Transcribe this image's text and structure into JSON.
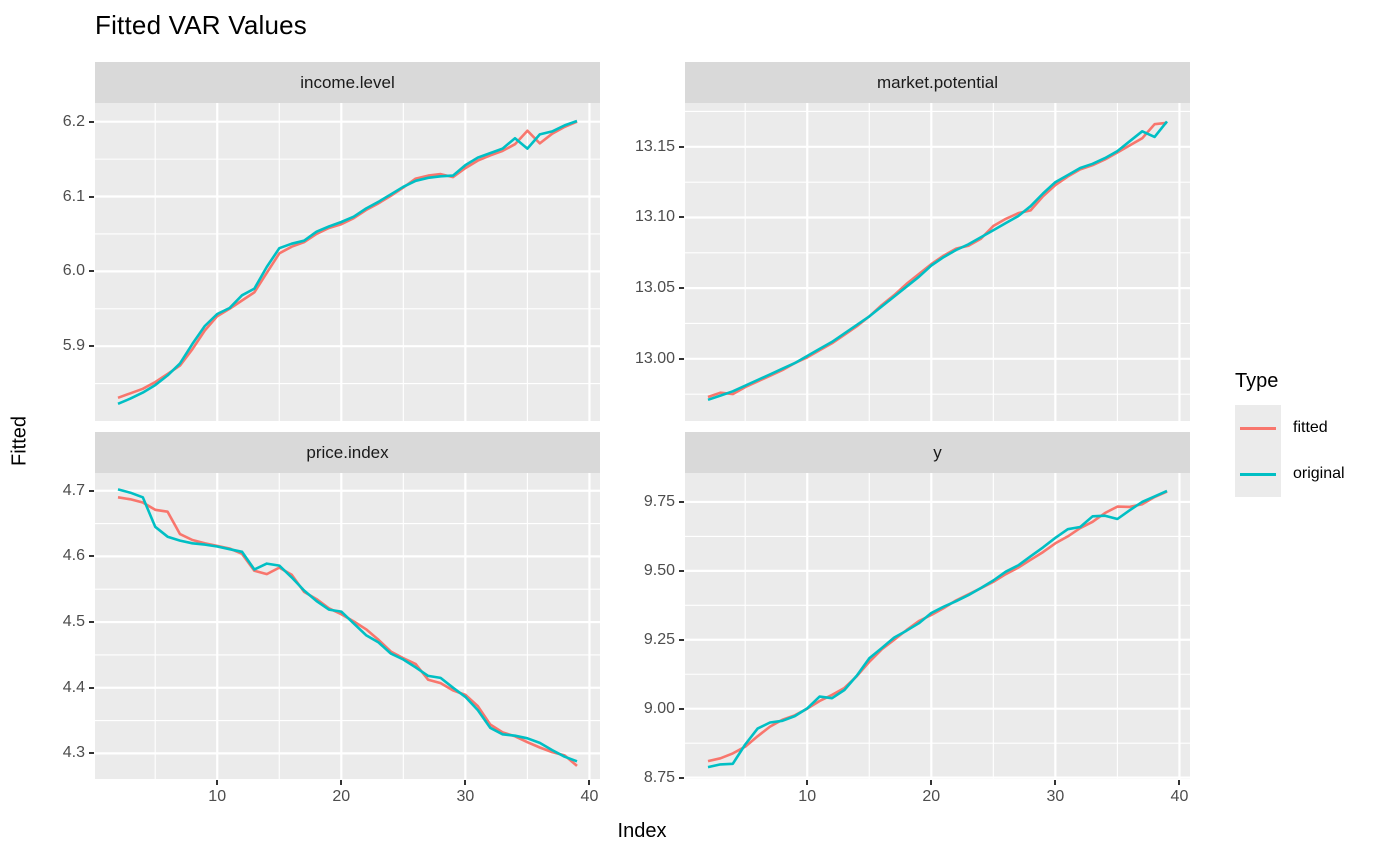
{
  "chart_data": {
    "type": "line",
    "title": "Fitted VAR Values",
    "xlabel": "Index",
    "ylabel": "Fitted",
    "legend": {
      "title": "Type",
      "position": "right",
      "entries": [
        {
          "label": "fitted",
          "color": "#F8766D"
        },
        {
          "label": "original",
          "color": "#00BFC4"
        }
      ]
    },
    "grid": "on",
    "x": [
      2,
      3,
      4,
      5,
      6,
      7,
      8,
      9,
      10,
      11,
      12,
      13,
      14,
      15,
      16,
      17,
      18,
      19,
      20,
      21,
      22,
      23,
      24,
      25,
      26,
      27,
      28,
      29,
      30,
      31,
      32,
      33,
      34,
      35,
      36,
      37,
      38,
      39
    ],
    "xlim": [
      0.15,
      40.85
    ],
    "x_major_ticks": {
      "values": [
        10,
        20,
        30,
        40
      ],
      "labels": [
        "10",
        "20",
        "30",
        "40"
      ]
    },
    "panels": [
      {
        "label": "income.level",
        "ylim": [
          5.8,
          6.225
        ],
        "yticks": {
          "values": [
            5.9,
            6.0,
            6.1,
            6.2
          ],
          "labels": [
            "5.9",
            "6.0",
            "6.1",
            "6.2"
          ]
        },
        "series": [
          {
            "name": "fitted",
            "values": [
              5.831,
              5.837,
              5.843,
              5.852,
              5.863,
              5.874,
              5.896,
              5.921,
              5.94,
              5.95,
              5.961,
              5.972,
              5.998,
              6.024,
              6.033,
              6.039,
              6.05,
              6.058,
              6.063,
              6.071,
              6.082,
              6.091,
              6.101,
              6.112,
              6.124,
              6.128,
              6.13,
              6.126,
              6.138,
              6.148,
              6.155,
              6.161,
              6.17,
              6.188,
              6.171,
              6.184,
              6.193,
              6.2
            ]
          },
          {
            "name": "original",
            "values": [
              5.823,
              5.83,
              5.838,
              5.848,
              5.861,
              5.877,
              5.903,
              5.927,
              5.943,
              5.951,
              5.968,
              5.977,
              6.006,
              6.031,
              6.037,
              6.041,
              6.053,
              6.06,
              6.066,
              6.073,
              6.084,
              6.093,
              6.103,
              6.113,
              6.121,
              6.125,
              6.127,
              6.128,
              6.142,
              6.152,
              6.158,
              6.164,
              6.178,
              6.164,
              6.183,
              6.187,
              6.195,
              6.201
            ]
          }
        ]
      },
      {
        "label": "market.potential",
        "ylim": [
          12.956,
          13.181
        ],
        "yticks": {
          "values": [
            13.0,
            13.05,
            13.1,
            13.15
          ],
          "labels": [
            "13.00",
            "13.05",
            "13.10",
            "13.15"
          ]
        },
        "series": [
          {
            "name": "fitted",
            "values": [
              12.973,
              12.976,
              12.975,
              12.98,
              12.984,
              12.988,
              12.992,
              12.997,
              13.001,
              13.006,
              13.011,
              13.017,
              13.023,
              13.03,
              13.038,
              13.045,
              13.053,
              13.06,
              13.067,
              13.073,
              13.078,
              13.08,
              13.085,
              13.094,
              13.099,
              13.103,
              13.105,
              13.115,
              13.123,
              13.129,
              13.134,
              13.137,
              13.141,
              13.146,
              13.151,
              13.156,
              13.166,
              13.167
            ]
          },
          {
            "name": "original",
            "values": [
              12.971,
              12.974,
              12.977,
              12.981,
              12.985,
              12.989,
              12.993,
              12.997,
              13.002,
              13.007,
              13.012,
              13.018,
              13.024,
              13.03,
              13.037,
              13.044,
              13.051,
              13.058,
              13.066,
              13.072,
              13.077,
              13.081,
              13.086,
              13.091,
              13.096,
              13.101,
              13.108,
              13.117,
              13.125,
              13.13,
              13.135,
              13.138,
              13.142,
              13.147,
              13.154,
              13.161,
              13.157,
              13.168
            ]
          }
        ]
      },
      {
        "label": "price.index",
        "ylim": [
          4.261,
          4.727
        ],
        "yticks": {
          "values": [
            4.3,
            4.4,
            4.5,
            4.6,
            4.7
          ],
          "labels": [
            "4.3",
            "4.4",
            "4.5",
            "4.6",
            "4.7"
          ]
        },
        "series": [
          {
            "name": "fitted",
            "values": [
              4.69,
              4.687,
              4.682,
              4.671,
              4.668,
              4.634,
              4.625,
              4.62,
              4.616,
              4.612,
              4.604,
              4.578,
              4.573,
              4.583,
              4.572,
              4.546,
              4.535,
              4.521,
              4.512,
              4.501,
              4.489,
              4.473,
              4.455,
              4.445,
              4.436,
              4.412,
              4.407,
              4.396,
              4.389,
              4.372,
              4.344,
              4.332,
              4.326,
              4.317,
              4.309,
              4.302,
              4.297,
              4.281
            ]
          },
          {
            "name": "original",
            "values": [
              4.702,
              4.697,
              4.69,
              4.645,
              4.63,
              4.624,
              4.62,
              4.618,
              4.615,
              4.611,
              4.607,
              4.58,
              4.589,
              4.586,
              4.568,
              4.548,
              4.532,
              4.519,
              4.516,
              4.498,
              4.48,
              4.469,
              4.452,
              4.443,
              4.431,
              4.418,
              4.415,
              4.4,
              4.386,
              4.366,
              4.339,
              4.329,
              4.327,
              4.323,
              4.316,
              4.305,
              4.295,
              4.288
            ]
          }
        ]
      },
      {
        "label": "y",
        "ylim": [
          8.745,
          9.855
        ],
        "yticks": {
          "values": [
            8.75,
            9.0,
            9.25,
            9.5,
            9.75
          ],
          "labels": [
            "8.75",
            "9.00",
            "9.25",
            "9.50",
            "9.75"
          ]
        },
        "series": [
          {
            "name": "fitted",
            "values": [
              8.81,
              8.82,
              8.838,
              8.862,
              8.9,
              8.935,
              8.96,
              8.976,
              9.0,
              9.028,
              9.05,
              9.075,
              9.118,
              9.17,
              9.215,
              9.25,
              9.285,
              9.318,
              9.34,
              9.365,
              9.393,
              9.415,
              9.437,
              9.46,
              9.488,
              9.512,
              9.54,
              9.568,
              9.6,
              9.625,
              9.655,
              9.678,
              9.71,
              9.733,
              9.732,
              9.742,
              9.768,
              9.788
            ]
          },
          {
            "name": "original",
            "values": [
              8.788,
              8.798,
              8.8,
              8.87,
              8.928,
              8.95,
              8.956,
              8.973,
              9.001,
              9.044,
              9.038,
              9.068,
              9.12,
              9.183,
              9.22,
              9.258,
              9.283,
              9.31,
              9.347,
              9.37,
              9.39,
              9.412,
              9.438,
              9.465,
              9.497,
              9.52,
              9.553,
              9.585,
              9.62,
              9.651,
              9.659,
              9.698,
              9.7,
              9.688,
              9.72,
              9.75,
              9.77,
              9.79
            ]
          }
        ]
      }
    ],
    "colors": {
      "fitted": "#F8766D",
      "original": "#00BFC4",
      "panel_background": "#ebebeb",
      "strip_background": "#d9d9d9",
      "gridline": "#ffffff",
      "axis_text": "#4d4d4d"
    }
  }
}
